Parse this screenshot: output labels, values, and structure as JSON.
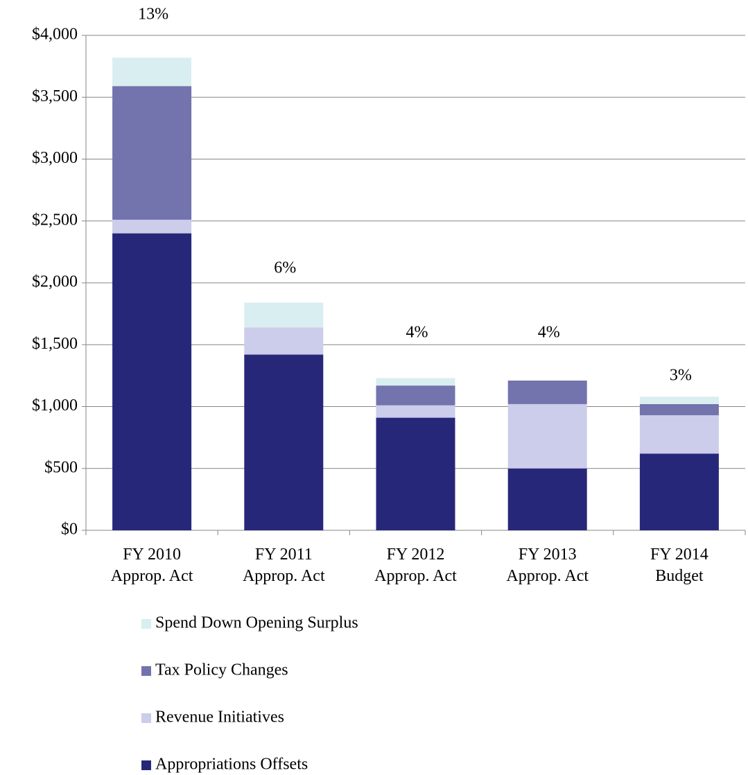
{
  "chart_data": {
    "type": "stacked_bar",
    "categories": [
      [
        "FY 2010",
        "Approp. Act"
      ],
      [
        "FY 2011",
        "Approp. Act"
      ],
      [
        "FY 2012",
        "Approp. Act"
      ],
      [
        "FY 2013",
        "Approp. Act"
      ],
      [
        "FY 2014",
        "Budget"
      ]
    ],
    "series": [
      {
        "name": "Appropriations Offsets",
        "color": "#27277a",
        "values": [
          2400,
          1420,
          910,
          500,
          620
        ]
      },
      {
        "name": "Revenue Initiatives",
        "color": "#cccceb",
        "values": [
          110,
          220,
          100,
          520,
          310
        ]
      },
      {
        "name": "Tax Policy Changes",
        "color": "#7373ad",
        "values": [
          1080,
          0,
          160,
          190,
          90
        ]
      },
      {
        "name": "Spend Down Opening Surplus",
        "color": "#d9eef0",
        "values": [
          230,
          200,
          60,
          0,
          60
        ]
      }
    ],
    "annotations": [
      "13%",
      "6%",
      "4%",
      "4%",
      "3%"
    ],
    "ylim": [
      0,
      4000
    ],
    "yticks": [
      {
        "value": 0,
        "label": "$0"
      },
      {
        "value": 500,
        "label": "$500"
      },
      {
        "value": 1000,
        "label": "$1,000"
      },
      {
        "value": 1500,
        "label": "$1,500"
      },
      {
        "value": 2000,
        "label": "$2,000"
      },
      {
        "value": 2500,
        "label": "$2,500"
      },
      {
        "value": 3000,
        "label": "$3,000"
      },
      {
        "value": 3500,
        "label": "$3,500"
      },
      {
        "value": 4000,
        "label": "$4,000"
      }
    ],
    "grid": true,
    "legend": "bottom"
  }
}
